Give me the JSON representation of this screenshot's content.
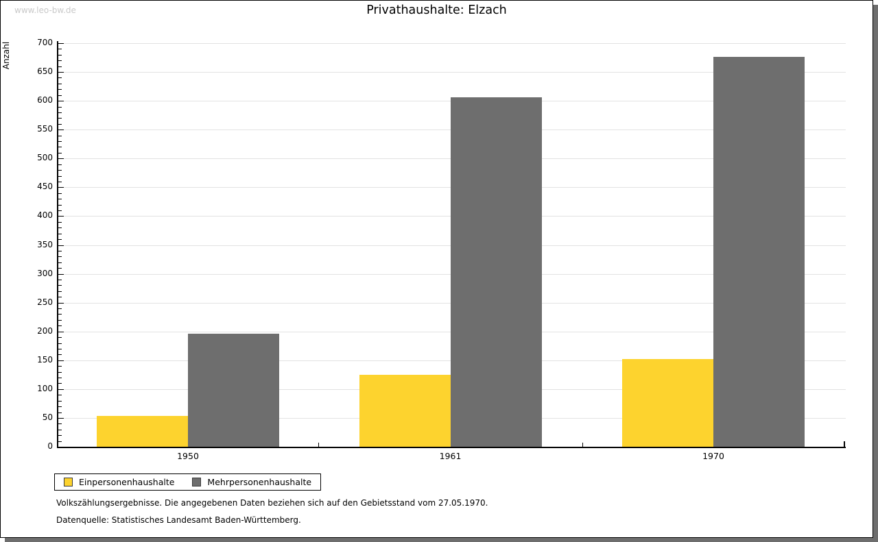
{
  "page": {
    "watermark": "www.leo-bw.de",
    "title": "Privathaushalte: Elzach",
    "footnote_gebietsstand": "Volkszählungsergebnisse. Die angegebenen Daten beziehen sich auf den Gebietsstand vom 27.05.1970.",
    "footnote_datenquelle": "Datenquelle: Statistisches Landesamt Baden-Württemberg."
  },
  "chart_data": {
    "type": "bar",
    "title": "Privathaushalte: Elzach",
    "categories": [
      "1950",
      "1961",
      "1970"
    ],
    "series": [
      {
        "name": "Einpersonenhaushalte",
        "color": "#fdd32e",
        "values": [
          53,
          125,
          152
        ]
      },
      {
        "name": "Mehrpersonenhaushalte",
        "color": "#6e6e6e",
        "values": [
          196,
          606,
          676
        ]
      }
    ],
    "xlabel": "",
    "ylabel": "Anzahl",
    "ylim": [
      0,
      700
    ],
    "ytick_major": 50,
    "ytick_minor": 10,
    "grid": true,
    "gridline_color": "#e2e2e2",
    "legend_position": "bottom-left"
  }
}
